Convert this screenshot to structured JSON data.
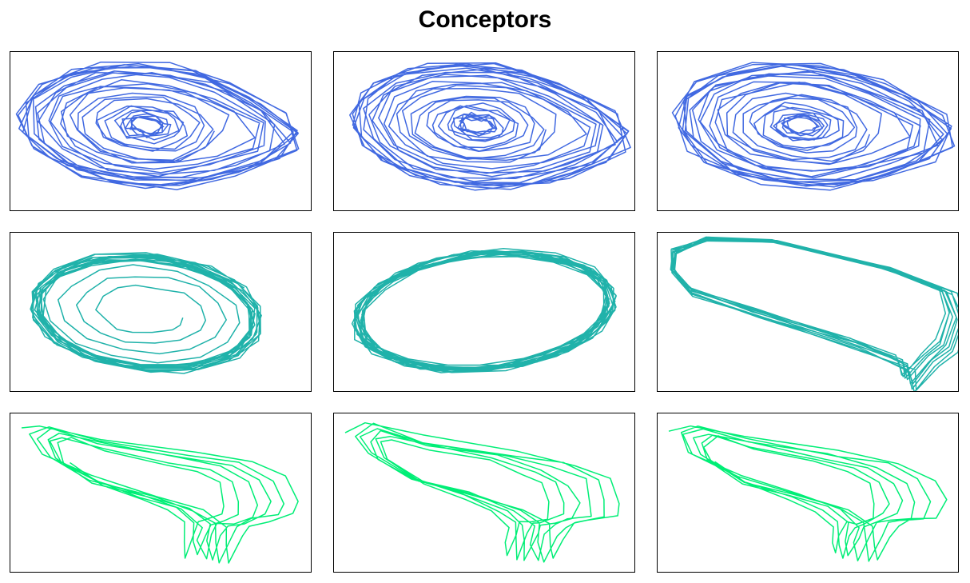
{
  "title": "Conceptors",
  "chart_data": [
    {
      "type": "line",
      "panel": "row1-col1",
      "color": "#4169E1",
      "shape": "spiral",
      "axes": "none",
      "grid": false
    },
    {
      "type": "line",
      "panel": "row1-col2",
      "color": "#4169E1",
      "shape": "spiral",
      "axes": "none",
      "grid": false
    },
    {
      "type": "line",
      "panel": "row1-col3",
      "color": "#4169E1",
      "shape": "spiral",
      "axes": "none",
      "grid": false
    },
    {
      "type": "line",
      "panel": "row2-col1",
      "color": "#20B2AA",
      "shape": "spiral-to-ellipse",
      "axes": "none",
      "grid": false
    },
    {
      "type": "line",
      "panel": "row2-col2",
      "color": "#20B2AA",
      "shape": "ellipse",
      "axes": "none",
      "grid": false
    },
    {
      "type": "line",
      "panel": "row2-col3",
      "color": "#20B2AA",
      "shape": "tilted-loop",
      "axes": "none",
      "grid": false
    },
    {
      "type": "line",
      "panel": "row3-col1",
      "color": "#00EE76",
      "shape": "nested-tail-loops",
      "axes": "none",
      "grid": false
    },
    {
      "type": "line",
      "panel": "row3-col2",
      "color": "#00EE76",
      "shape": "nested-tail-loops",
      "axes": "none",
      "grid": false
    },
    {
      "type": "line",
      "panel": "row3-col3",
      "color": "#00EE76",
      "shape": "nested-tail-loops",
      "axes": "none",
      "grid": false
    }
  ]
}
